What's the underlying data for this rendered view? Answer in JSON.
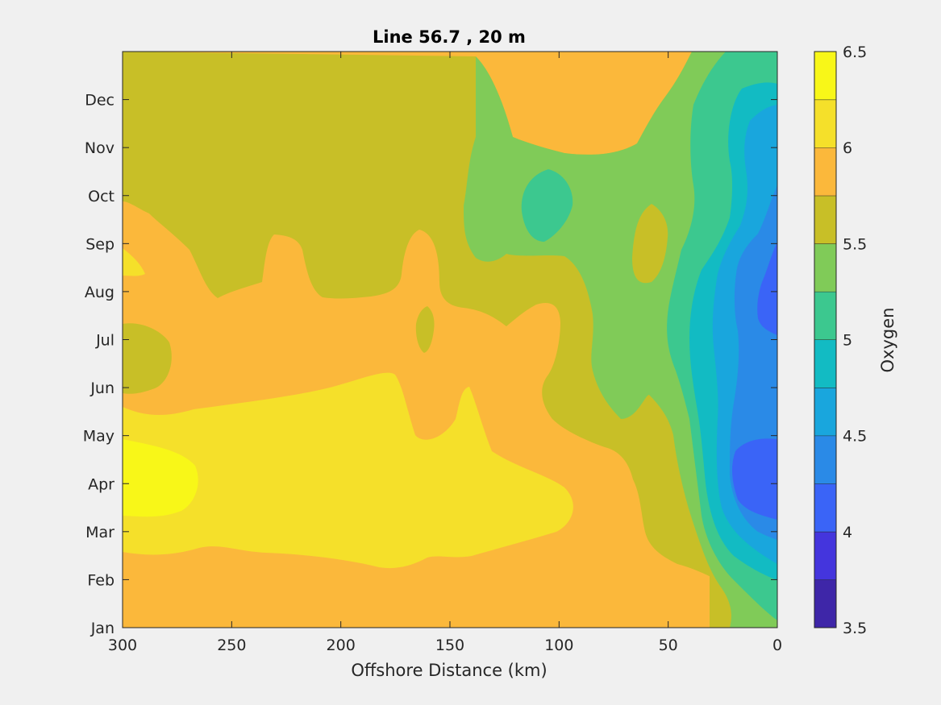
{
  "chart_data": {
    "type": "contour",
    "title": "Line 56.7 , 20 m",
    "xlabel": "Offshore Distance (km)",
    "xlim": [
      300,
      0
    ],
    "x_reversed": true,
    "xticks": [
      "300",
      "250",
      "200",
      "150",
      "100",
      "50",
      "0"
    ],
    "xtick_values": [
      300,
      250,
      200,
      150,
      100,
      50,
      0
    ],
    "ylim": [
      1,
      13
    ],
    "ytick_labels": [
      "Jan",
      "Feb",
      "Mar",
      "Apr",
      "May",
      "Jun",
      "Jul",
      "Aug",
      "Sep",
      "Oct",
      "Nov",
      "Dec"
    ],
    "ytick_values": [
      1,
      2,
      3,
      4,
      5,
      6,
      7,
      8,
      9,
      10,
      11,
      12
    ],
    "colorbar": {
      "label": "Oxygen",
      "range": [
        3.5,
        6.5
      ],
      "tick_labels": [
        "6.5",
        "6",
        "5.5",
        "5",
        "4.5",
        "4",
        "3.5"
      ],
      "tick_values": [
        6.5,
        6,
        5.5,
        5,
        4.5,
        4,
        3.5
      ],
      "levels": [
        3.5,
        3.75,
        4.0,
        4.25,
        4.5,
        4.75,
        5.0,
        5.25,
        5.5,
        5.75,
        6.0,
        6.25,
        6.5
      ],
      "colors": [
        "#3e26a8",
        "#4435dd",
        "#3a64f7",
        "#2a8ae7",
        "#19a6dd",
        "#12bbc3",
        "#3cc88f",
        "#80cb58",
        "#c8bf27",
        "#fbb83b",
        "#f5e02a",
        "#f8f718"
      ]
    },
    "regions": [
      {
        "name": "base",
        "band": [
          5.75,
          6.0
        ]
      },
      {
        "name": "lower-orange",
        "band": [
          6.0,
          6.25
        ]
      },
      {
        "name": "spring-yellow",
        "band": [
          6.25,
          6.5
        ]
      },
      {
        "name": "middle-green",
        "band": [
          5.5,
          5.75
        ]
      },
      {
        "name": "upper-green",
        "band": [
          5.5,
          5.75
        ]
      },
      {
        "name": "nearshore-5.25",
        "band": [
          5.25,
          5.5
        ]
      },
      {
        "name": "nearshore-5.0",
        "band": [
          5.0,
          5.25
        ]
      },
      {
        "name": "nearshore-4.75",
        "band": [
          4.75,
          5.0
        ]
      },
      {
        "name": "nearshore-4.5",
        "band": [
          4.5,
          4.75
        ]
      },
      {
        "name": "nearshore-4.25",
        "band": [
          4.25,
          4.5
        ]
      },
      {
        "name": "nearshore-4.0",
        "band": [
          4.0,
          4.25
        ]
      },
      {
        "name": "teal-patch",
        "band": [
          5.0,
          5.25
        ]
      },
      {
        "name": "green-patch-55km",
        "band": [
          5.5,
          5.75
        ]
      },
      {
        "name": "west-green-jul",
        "band": [
          5.5,
          5.75
        ]
      },
      {
        "name": "orange-sep",
        "band": [
          6.0,
          6.25
        ]
      },
      {
        "name": "small-green-jul",
        "band": [
          5.5,
          5.75
        ]
      }
    ]
  }
}
